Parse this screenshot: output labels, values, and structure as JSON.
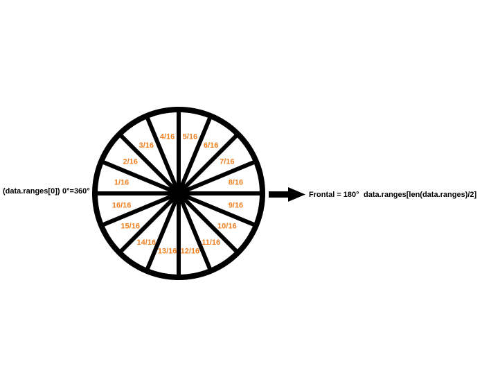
{
  "colors": {
    "stroke": "#000000",
    "segment_label": "#f08020",
    "background": "#ffffff"
  },
  "left_label": {
    "ranges_ref": "(data.ranges[0])",
    "angle": "0°=360°"
  },
  "right_label": {
    "frontal": "Frontal = 180°",
    "ranges_ref": "data.ranges[len(data.ranges)/2]"
  },
  "segments": [
    {
      "id": "s1",
      "label": "1/16"
    },
    {
      "id": "s2",
      "label": "2/16"
    },
    {
      "id": "s3",
      "label": "3/16"
    },
    {
      "id": "s4",
      "label": "4/16"
    },
    {
      "id": "s5",
      "label": "5/16"
    },
    {
      "id": "s6",
      "label": "6/16"
    },
    {
      "id": "s7",
      "label": "7/16"
    },
    {
      "id": "s8",
      "label": "8/16"
    },
    {
      "id": "s9",
      "label": "9/16"
    },
    {
      "id": "s10",
      "label": "10/16"
    },
    {
      "id": "s11",
      "label": "11/16"
    },
    {
      "id": "s12",
      "label": "12/16"
    },
    {
      "id": "s13",
      "label": "13/16"
    },
    {
      "id": "s14",
      "label": "14/16"
    },
    {
      "id": "s15",
      "label": "15/16"
    },
    {
      "id": "s16",
      "label": "16/16"
    }
  ],
  "arrow_icon": "right-arrow-icon"
}
